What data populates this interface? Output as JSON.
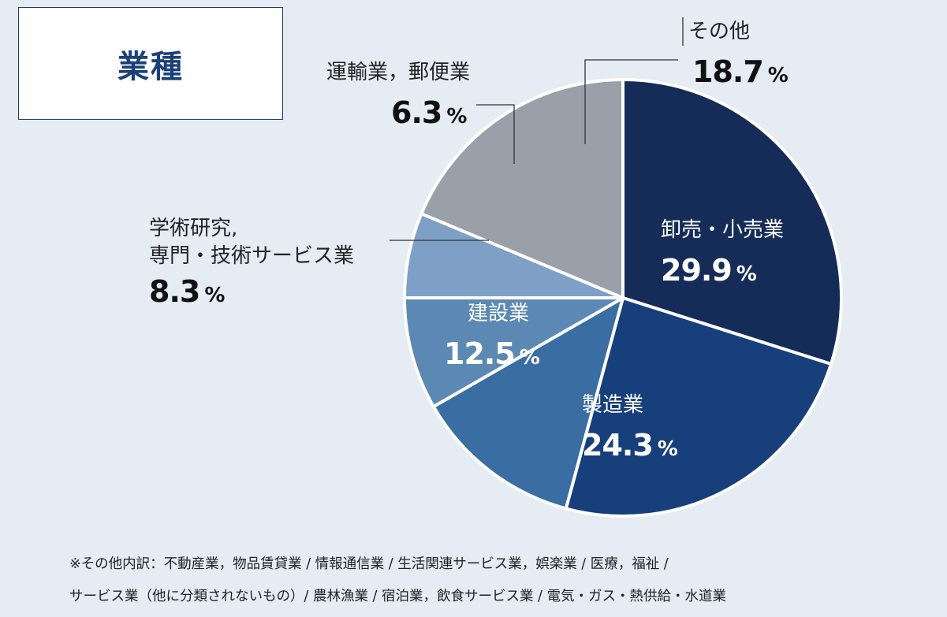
{
  "title": "業種",
  "chart_data": {
    "type": "pie",
    "title": "業種",
    "unit": "%",
    "slices": [
      {
        "label": "卸売・小売業",
        "value": 29.9,
        "color": "#152c58"
      },
      {
        "label": "製造業",
        "value": 24.3,
        "color": "#173f7b"
      },
      {
        "label": "建設業",
        "value": 12.5,
        "color": "#3a6da2"
      },
      {
        "label": "学術研究,専門・技術サービス業",
        "label_lines": [
          "学術研究,",
          "専門・技術サービス業"
        ],
        "value": 8.3,
        "color": "#5c88b4"
      },
      {
        "label": "運輸業，郵便業",
        "value": 6.3,
        "color": "#7ea0c6"
      },
      {
        "label": "その他",
        "value": 18.7,
        "color": "#9aa0aa"
      }
    ]
  },
  "footnote": {
    "line1": "※その他内訳：不動産業，物品賃貸業 / 情報通信業 / 生活関連サービス業，娯楽業 / 医療，福祉 /",
    "line2": "サービス業（他に分類されないもの）/ 農林漁業 / 宿泊業，飲食サービス業 / 電気・ガス・熱供給・水道業"
  }
}
